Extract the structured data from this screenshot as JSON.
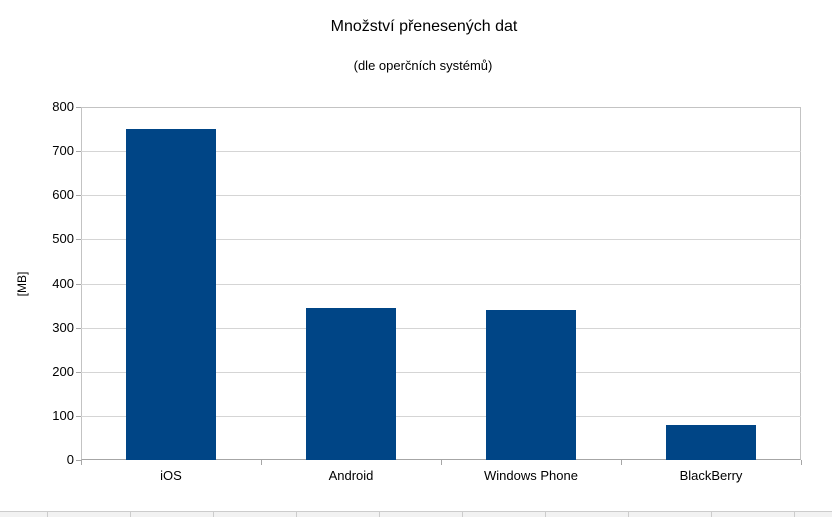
{
  "chart_data": {
    "type": "bar",
    "title": "Množství přenesených dat",
    "subtitle": "(dle operčních systémů)",
    "categories": [
      "iOS",
      "Android",
      "Windows Phone",
      "BlackBerry"
    ],
    "values": [
      750,
      345,
      340,
      80
    ],
    "xlabel": "",
    "ylabel": "[MB]",
    "ylim": [
      0,
      800
    ],
    "yticks": [
      0,
      100,
      200,
      300,
      400,
      500,
      600,
      700,
      800
    ],
    "grid": true,
    "legend_position": "none",
    "colors": {
      "bar": "#004586",
      "gridline": "#d5d5d5",
      "plot_border": "#c3c3c3",
      "axis_line": "#a6a6a6",
      "text": "#000000"
    }
  },
  "background_spreadsheet": {
    "strip_visible": true,
    "cell_fill": "#f2f2f2",
    "cell_border": "#cccccc"
  }
}
